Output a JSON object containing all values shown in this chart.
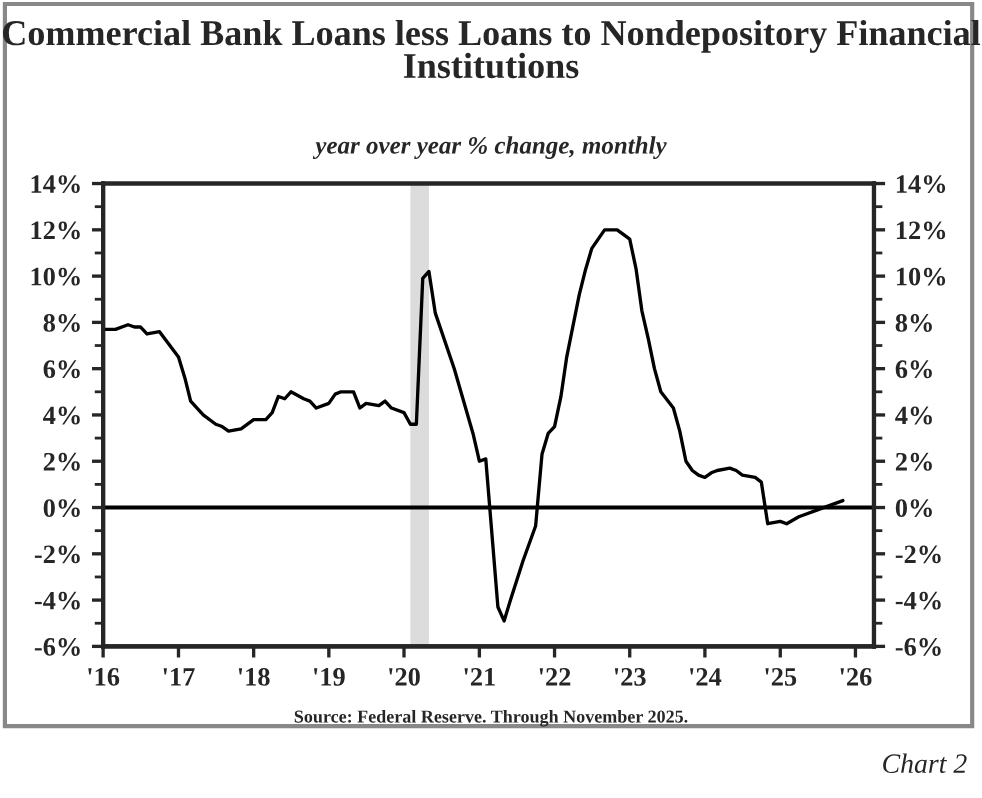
{
  "chart_data": {
    "type": "line",
    "title": "Commercial Bank Loans less Loans to Nondepository Financial Institutions",
    "subtitle": "year over year % change, monthly",
    "x": [
      "2016-01",
      "2016-03",
      "2016-05",
      "2016-06",
      "2016-07",
      "2016-08",
      "2016-10",
      "2017-01",
      "2017-02",
      "2017-03",
      "2017-05",
      "2017-07",
      "2017-08",
      "2017-09",
      "2017-11",
      "2018-01",
      "2018-03",
      "2018-04",
      "2018-05",
      "2018-06",
      "2018-07",
      "2018-09",
      "2018-10",
      "2018-11",
      "2019-01",
      "2019-02",
      "2019-03",
      "2019-05",
      "2019-06",
      "2019-07",
      "2019-09",
      "2019-10",
      "2019-11",
      "2020-01",
      "2020-02",
      "2020-03",
      "2020-04",
      "2020-05",
      "2020-06",
      "2020-09",
      "2020-12",
      "2021-01",
      "2021-02",
      "2021-04",
      "2021-05",
      "2021-06",
      "2021-08",
      "2021-10",
      "2021-11",
      "2021-12",
      "2022-01",
      "2022-02",
      "2022-03",
      "2022-05",
      "2022-06",
      "2022-07",
      "2022-09",
      "2022-11",
      "2022-12",
      "2023-01",
      "2023-02",
      "2023-03",
      "2023-04",
      "2023-05",
      "2023-06",
      "2023-08",
      "2023-09",
      "2023-10",
      "2023-11",
      "2023-12",
      "2024-01",
      "2024-02",
      "2024-03",
      "2024-05",
      "2024-06",
      "2024-07",
      "2024-09",
      "2024-10",
      "2024-11",
      "2025-01",
      "2025-02",
      "2025-04",
      "2025-05",
      "2025-07",
      "2025-11"
    ],
    "series": [
      {
        "color": "#000000",
        "values": [
          7.7,
          7.7,
          7.9,
          7.8,
          7.8,
          7.5,
          7.6,
          6.5,
          5.6,
          4.6,
          4.0,
          3.6,
          3.5,
          3.3,
          3.4,
          3.8,
          3.8,
          4.1,
          4.8,
          4.7,
          5.0,
          4.7,
          4.6,
          4.3,
          4.5,
          4.9,
          5.0,
          5.0,
          4.3,
          4.5,
          4.4,
          4.6,
          4.3,
          4.1,
          3.6,
          3.6,
          9.9,
          10.2,
          8.4,
          6.0,
          3.2,
          2.0,
          2.1,
          -4.3,
          -4.9,
          -4.0,
          -2.3,
          -0.8,
          2.3,
          3.2,
          3.5,
          4.8,
          6.5,
          9.2,
          10.3,
          11.2,
          12.0,
          12.0,
          11.8,
          11.6,
          10.3,
          8.5,
          7.3,
          6.0,
          5.0,
          4.3,
          3.3,
          2.0,
          1.6,
          1.4,
          1.3,
          1.5,
          1.6,
          1.7,
          1.6,
          1.4,
          1.3,
          1.1,
          -0.7,
          -0.6,
          -0.7,
          -0.4,
          -0.3,
          -0.1,
          0.3
        ]
      }
    ],
    "xlim": [
      "2016-01",
      "2026-04"
    ],
    "xticks": [
      {
        "value": "2016",
        "label": "'16"
      },
      {
        "value": "2017",
        "label": "'17"
      },
      {
        "value": "2018",
        "label": "'18"
      },
      {
        "value": "2019",
        "label": "'19"
      },
      {
        "value": "2020",
        "label": "'20"
      },
      {
        "value": "2021",
        "label": "'21"
      },
      {
        "value": "2022",
        "label": "'22"
      },
      {
        "value": "2023",
        "label": "'23"
      },
      {
        "value": "2024",
        "label": "'24"
      },
      {
        "value": "2025",
        "label": "'25"
      },
      {
        "value": "2026",
        "label": "'26"
      }
    ],
    "ylim": [
      -6,
      14
    ],
    "yticks": [
      {
        "value": -6,
        "label": "-6%"
      },
      {
        "value": -4,
        "label": "-4%"
      },
      {
        "value": -2,
        "label": "-2%"
      },
      {
        "value": 0,
        "label": "0%"
      },
      {
        "value": 2,
        "label": "2%"
      },
      {
        "value": 4,
        "label": "4%"
      },
      {
        "value": 6,
        "label": "6%"
      },
      {
        "value": 8,
        "label": "8%"
      },
      {
        "value": 10,
        "label": "10%"
      },
      {
        "value": 12,
        "label": "12%"
      },
      {
        "value": 14,
        "label": "14%"
      }
    ],
    "y2lim": [
      -6,
      14
    ],
    "y2ticks": [
      {
        "value": -6,
        "label": "-6%"
      },
      {
        "value": -4,
        "label": "-4%"
      },
      {
        "value": -2,
        "label": "-2%"
      },
      {
        "value": 0,
        "label": "0%"
      },
      {
        "value": 2,
        "label": "2%"
      },
      {
        "value": 4,
        "label": "4%"
      },
      {
        "value": 6,
        "label": "6%"
      },
      {
        "value": 8,
        "label": "8%"
      },
      {
        "value": 10,
        "label": "10%"
      },
      {
        "value": 12,
        "label": "12%"
      },
      {
        "value": 14,
        "label": "14%"
      }
    ],
    "ref_lines": [
      {
        "axis": "y",
        "value": 0,
        "color": "#000000"
      }
    ],
    "bands": [
      {
        "axis": "x",
        "from": "2020-02",
        "to": "2020-05",
        "color": "#dcdcdc"
      }
    ],
    "annotations": [
      "Source: Federal Reserve. Through November 2025.",
      "Chart 2"
    ],
    "grid": false,
    "legend": false,
    "marker": "none",
    "line_style": "solid"
  }
}
